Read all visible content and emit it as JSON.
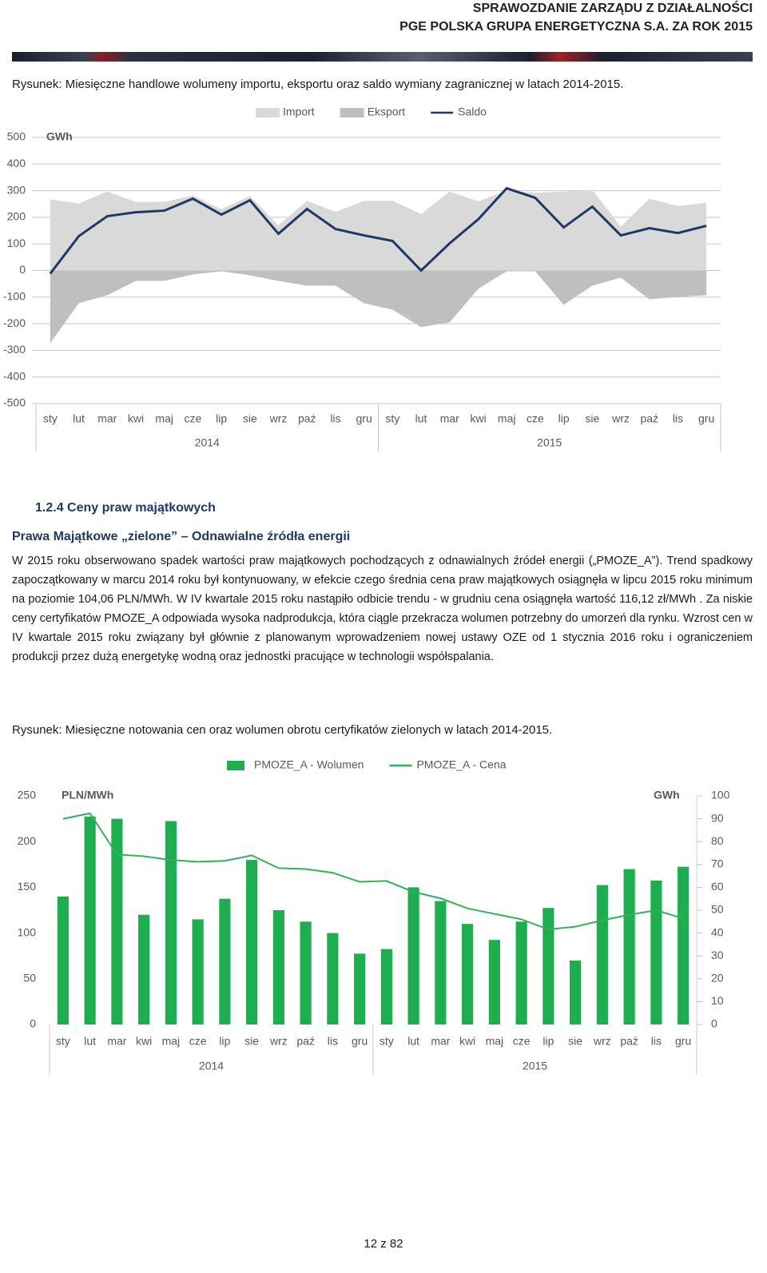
{
  "header": {
    "line1": "SPRAWOZDANIE ZARZĄDU Z DZIAŁALNOŚCI",
    "line2": "PGE POLSKA GRUPA ENERGETYCZNA S.A. ZA ROK 2015"
  },
  "figure1_caption": "Rysunek: Miesięczne handlowe wolumeny importu, eksportu oraz saldo wymiany zagranicznej w latach 2014-2015.",
  "section_title": "1.2.4 Ceny praw majątkowych",
  "subsection_title": "Prawa Majątkowe „zielone” – Odnawialne źródła energii",
  "paragraph": "W 2015 roku obserwowano spadek  wartości praw majątkowych pochodzących z odnawialnych źródeł energii („PMOZE_A”). Trend spadkowy zapoczątkowany w marcu 2014 roku był kontynuowany, w efekcie czego średnia cena praw majątkowych osiągnęła w lipcu 2015 roku minimum na poziomie 104,06 PLN/MWh. W IV kwartale 2015 roku nastąpiło odbicie trendu - w grudniu cena osiągnęła wartość 116,12 zł/MWh . Za niskie ceny certyfikatów PMOZE_A odpowiada wysoka nadprodukcja, która ciągle przekracza wolumen potrzebny do umorzeń dla rynku. Wzrost cen w IV kwartale 2015 roku związany był głównie z planowanym wprowadzeniem nowej ustawy OZE od 1 stycznia 2016 roku i ograniczeniem produkcji przez dużą energetykę wodną oraz jednostki pracujące w technologii współspalania.",
  "figure2_caption": "Rysunek: Miesięczne notowania cen oraz wolumen obrotu certyfikatów zielonych w latach 2014-2015.",
  "page_number": "12 z 82",
  "chart_data": [
    {
      "type": "area",
      "y_label": "GWh",
      "categories": [
        "sty",
        "lut",
        "mar",
        "kwi",
        "maj",
        "cze",
        "lip",
        "sie",
        "wrz",
        "paź",
        "lis",
        "gru",
        "sty",
        "lut",
        "mar",
        "kwi",
        "maj",
        "cze",
        "lip",
        "sie",
        "wrz",
        "paź",
        "lis",
        "gru"
      ],
      "year_labels": [
        "2014",
        "2015"
      ],
      "series": [
        {
          "name": "Import",
          "type": "area",
          "color": "#d9d9d9",
          "values": [
            267,
            252,
            297,
            257,
            258,
            282,
            230,
            280,
            170,
            262,
            220,
            262,
            262,
            212,
            297,
            260,
            300,
            292,
            297,
            302,
            165,
            270,
            242,
            255
          ]
        },
        {
          "name": "Eksport",
          "type": "area",
          "color": "#bfbfbf",
          "values": [
            -273,
            -123,
            -93,
            -39,
            -39,
            -15,
            -3,
            -18,
            -39,
            -57,
            -57,
            -123,
            -147,
            -213,
            -195,
            -69,
            -3,
            -3,
            -129,
            -57,
            -27,
            -108,
            -99,
            -93
          ]
        },
        {
          "name": "Saldo",
          "type": "line",
          "color": "#1f3864",
          "values": [
            -12,
            129,
            204,
            219,
            225,
            270,
            210,
            264,
            138,
            231,
            156,
            132,
            111,
            0,
            102,
            192,
            309,
            273,
            162,
            240,
            132,
            159,
            141,
            168
          ]
        }
      ],
      "ylim": [
        -500,
        500
      ],
      "yticks": [
        -500,
        -400,
        -300,
        -200,
        -100,
        0,
        100,
        200,
        300,
        400,
        500
      ],
      "grid": true,
      "legend": "top"
    },
    {
      "type": "bar",
      "y_label": "PLN/MWh",
      "y2_label": "GWh",
      "categories": [
        "sty",
        "lut",
        "mar",
        "kwi",
        "maj",
        "cze",
        "lip",
        "sie",
        "wrz",
        "paź",
        "lis",
        "gru",
        "sty",
        "lut",
        "mar",
        "kwi",
        "maj",
        "cze",
        "lip",
        "sie",
        "wrz",
        "paź",
        "lis",
        "gru"
      ],
      "year_labels": [
        "2014",
        "2015"
      ],
      "series": [
        {
          "name": "PMOZE_A - Wolumen",
          "type": "bar",
          "axis": "y2",
          "color": "#1fae4f",
          "values": [
            56,
            91,
            90,
            48,
            89,
            46,
            55,
            72,
            50,
            45,
            40,
            31,
            33,
            60,
            54,
            44,
            37,
            45,
            51,
            28,
            61,
            68,
            63,
            69
          ]
        },
        {
          "name": "PMOZE_A - Cena",
          "type": "line",
          "color": "#2eb35c",
          "values": [
            225,
            231,
            186,
            184,
            180,
            178,
            179,
            185,
            171,
            170,
            166,
            156,
            157,
            145,
            138,
            127,
            121,
            115,
            104,
            107,
            114,
            120,
            125,
            116
          ]
        }
      ],
      "ylim": [
        0,
        250
      ],
      "yticks": [
        0,
        50,
        100,
        150,
        200,
        250
      ],
      "y2lim": [
        0,
        100
      ],
      "y2ticks": [
        0,
        10,
        20,
        30,
        40,
        50,
        60,
        70,
        80,
        90,
        100
      ],
      "grid": false,
      "legend": "top"
    }
  ]
}
